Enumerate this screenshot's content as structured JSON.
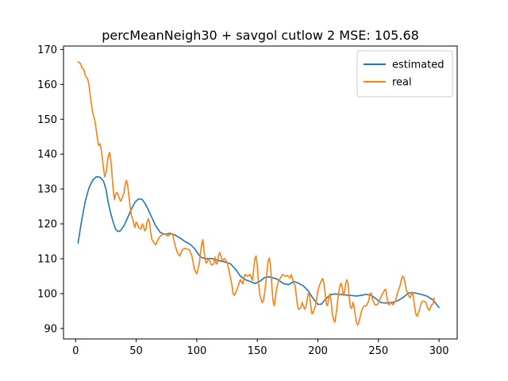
{
  "chart_data": {
    "type": "line",
    "title": "percMeanNeigh30 + savgol cutlow 2 MSE: 105.68",
    "xlabel": "",
    "ylabel": "",
    "xlim": [
      -10,
      315
    ],
    "ylim": [
      87,
      171
    ],
    "xticks": [
      0,
      50,
      100,
      150,
      200,
      250,
      300
    ],
    "yticks": [
      90,
      100,
      110,
      120,
      130,
      140,
      150,
      160,
      170
    ],
    "grid": false,
    "legend_position": "top-right",
    "series": [
      {
        "name": "estimated",
        "color": "#1f77b4",
        "points": [
          [
            2,
            114.5
          ],
          [
            5,
            121
          ],
          [
            8,
            126.5
          ],
          [
            11,
            130.3
          ],
          [
            14,
            132.5
          ],
          [
            17,
            133.5
          ],
          [
            20,
            133.4
          ],
          [
            23,
            132.3
          ],
          [
            25,
            130
          ],
          [
            27,
            126
          ],
          [
            29,
            123
          ],
          [
            31,
            120.5
          ],
          [
            33,
            118.5
          ],
          [
            35,
            117.8
          ],
          [
            37,
            118
          ],
          [
            40,
            119.5
          ],
          [
            43,
            121.8
          ],
          [
            46,
            124.2
          ],
          [
            49,
            126.2
          ],
          [
            52,
            127.2
          ],
          [
            55,
            127
          ],
          [
            58,
            125.5
          ],
          [
            62,
            122.5
          ],
          [
            66,
            119.5
          ],
          [
            70,
            117.5
          ],
          [
            74,
            117
          ],
          [
            78,
            117.3
          ],
          [
            82,
            116.8
          ],
          [
            86,
            116
          ],
          [
            90,
            115
          ],
          [
            94,
            114.3
          ],
          [
            98,
            113
          ],
          [
            100,
            112
          ],
          [
            103,
            110.5
          ],
          [
            107,
            110
          ],
          [
            112,
            110.1
          ],
          [
            118,
            109.5
          ],
          [
            124,
            109
          ],
          [
            128,
            108.5
          ],
          [
            132,
            107
          ],
          [
            136,
            105
          ],
          [
            140,
            104
          ],
          [
            144,
            103.5
          ],
          [
            148,
            102.9
          ],
          [
            152,
            103.5
          ],
          [
            156,
            104.6
          ],
          [
            160,
            104.8
          ],
          [
            166,
            104.2
          ],
          [
            172,
            102.8
          ],
          [
            176,
            102.6
          ],
          [
            180,
            103.5
          ],
          [
            184,
            103
          ],
          [
            188,
            102.2
          ],
          [
            192,
            100.8
          ],
          [
            196,
            98.6
          ],
          [
            200,
            96.9
          ],
          [
            203,
            97
          ],
          [
            206,
            98.3
          ],
          [
            210,
            99.6
          ],
          [
            214,
            99.9
          ],
          [
            220,
            99.7
          ],
          [
            226,
            99.5
          ],
          [
            232,
            99.3
          ],
          [
            236,
            99.5
          ],
          [
            240,
            99.8
          ],
          [
            244,
            99.5
          ],
          [
            248,
            98.5
          ],
          [
            252,
            97.4
          ],
          [
            256,
            97.3
          ],
          [
            262,
            97.5
          ],
          [
            266,
            98
          ],
          [
            270,
            98.8
          ],
          [
            275,
            100.2
          ],
          [
            280,
            100.2
          ],
          [
            285,
            99.8
          ],
          [
            290,
            99.3
          ],
          [
            295,
            98.2
          ],
          [
            300,
            96
          ]
        ]
      },
      {
        "name": "real",
        "color": "#ff7f0e",
        "points": [
          [
            2,
            166.5
          ],
          [
            4,
            166
          ],
          [
            5,
            165
          ],
          [
            7,
            164
          ],
          [
            8,
            162.5
          ],
          [
            10,
            161.5
          ],
          [
            11,
            160
          ],
          [
            12,
            157
          ],
          [
            14,
            152
          ],
          [
            16,
            149.5
          ],
          [
            17,
            147
          ],
          [
            18,
            144.5
          ],
          [
            19,
            142.5
          ],
          [
            20,
            143
          ],
          [
            21,
            141.5
          ],
          [
            22,
            139
          ],
          [
            23,
            136
          ],
          [
            24,
            133.5
          ],
          [
            25,
            134.5
          ],
          [
            26,
            137
          ],
          [
            27,
            139.5
          ],
          [
            28,
            140.5
          ],
          [
            29,
            138.5
          ],
          [
            30,
            134.5
          ],
          [
            31,
            130
          ],
          [
            32,
            127
          ],
          [
            33,
            128.5
          ],
          [
            34,
            129
          ],
          [
            35,
            128.5
          ],
          [
            36,
            127.5
          ],
          [
            37,
            126.5
          ],
          [
            38,
            127
          ],
          [
            39,
            128
          ],
          [
            40,
            129
          ],
          [
            41,
            131.5
          ],
          [
            42,
            132.5
          ],
          [
            43,
            131
          ],
          [
            44,
            128
          ],
          [
            45,
            125
          ],
          [
            46,
            122.5
          ],
          [
            47,
            121.5
          ],
          [
            48,
            120
          ],
          [
            49,
            119
          ],
          [
            50,
            120.5
          ],
          [
            51,
            120
          ],
          [
            52,
            119
          ],
          [
            54,
            118.5
          ],
          [
            55,
            120
          ],
          [
            56,
            119.5
          ],
          [
            57,
            118
          ],
          [
            58,
            118.5
          ],
          [
            59,
            120.5
          ],
          [
            60,
            121.5
          ],
          [
            61,
            120.5
          ],
          [
            62,
            117.5
          ],
          [
            63,
            115.5
          ],
          [
            64,
            115
          ],
          [
            65,
            114.5
          ],
          [
            66,
            114
          ],
          [
            68,
            115.5
          ],
          [
            70,
            116.5
          ],
          [
            72,
            117
          ],
          [
            74,
            117
          ],
          [
            76,
            116.5
          ],
          [
            78,
            117
          ],
          [
            80,
            117.2
          ],
          [
            82,
            114
          ],
          [
            84,
            111.8
          ],
          [
            86,
            110.8
          ],
          [
            88,
            112.5
          ],
          [
            90,
            113
          ],
          [
            92,
            112.8
          ],
          [
            94,
            112.5
          ],
          [
            96,
            110.8
          ],
          [
            98,
            107
          ],
          [
            100,
            105.7
          ],
          [
            102,
            108.5
          ],
          [
            103,
            111.5
          ],
          [
            104,
            114
          ],
          [
            105,
            115.5
          ],
          [
            106,
            112.5
          ],
          [
            107,
            109.5
          ],
          [
            108,
            108.7
          ],
          [
            109,
            109.5
          ],
          [
            110,
            110
          ],
          [
            112,
            108.2
          ],
          [
            114,
            108.5
          ],
          [
            115,
            110.5
          ],
          [
            116,
            108.5
          ],
          [
            117,
            108.7
          ],
          [
            118,
            111
          ],
          [
            119,
            111.8
          ],
          [
            121,
            109.5
          ],
          [
            123,
            110
          ],
          [
            125,
            109
          ],
          [
            127,
            106
          ],
          [
            129,
            102.5
          ],
          [
            130,
            100
          ],
          [
            131,
            99.5
          ],
          [
            133,
            101
          ],
          [
            135,
            103
          ],
          [
            136,
            104
          ],
          [
            138,
            102.8
          ],
          [
            139,
            104.5
          ],
          [
            140,
            105.5
          ],
          [
            142,
            105
          ],
          [
            144,
            105.5
          ],
          [
            146,
            103.8
          ],
          [
            147,
            107
          ],
          [
            148,
            110
          ],
          [
            149,
            110.8
          ],
          [
            150,
            108
          ],
          [
            151,
            103
          ],
          [
            152,
            99.8
          ],
          [
            153,
            98.5
          ],
          [
            154,
            97.4
          ],
          [
            155,
            98
          ],
          [
            156,
            100
          ],
          [
            157,
            103
          ],
          [
            158,
            106.5
          ],
          [
            159,
            109.5
          ],
          [
            160,
            110.2
          ],
          [
            161,
            107.5
          ],
          [
            162,
            102
          ],
          [
            163,
            97.8
          ],
          [
            164,
            96.5
          ],
          [
            165,
            99
          ],
          [
            166,
            101.5
          ],
          [
            167,
            103
          ],
          [
            169,
            104.5
          ],
          [
            171,
            105.5
          ],
          [
            173,
            105
          ],
          [
            175,
            105.2
          ],
          [
            177,
            104.5
          ],
          [
            178,
            105.5
          ],
          [
            180,
            103
          ],
          [
            181,
            102.5
          ],
          [
            182,
            100
          ],
          [
            183,
            97
          ],
          [
            184,
            95.5
          ],
          [
            186,
            96
          ],
          [
            187,
            97.5
          ],
          [
            189,
            95.5
          ],
          [
            190,
            96
          ],
          [
            191,
            98
          ],
          [
            192,
            100
          ],
          [
            193,
            99.5
          ],
          [
            194,
            97
          ],
          [
            195,
            94.2
          ],
          [
            196,
            94.5
          ],
          [
            197,
            95.5
          ],
          [
            198,
            96.5
          ],
          [
            199,
            98.5
          ],
          [
            200,
            101
          ],
          [
            202,
            103
          ],
          [
            203,
            103.8
          ],
          [
            204,
            104.3
          ],
          [
            205,
            103
          ],
          [
            206,
            100
          ],
          [
            207,
            97
          ],
          [
            208,
            96.5
          ],
          [
            209,
            99
          ],
          [
            210,
            100
          ],
          [
            211,
            97.5
          ],
          [
            212,
            94
          ],
          [
            213,
            92.5
          ],
          [
            214,
            91.8
          ],
          [
            215,
            94
          ],
          [
            216,
            97
          ],
          [
            217,
            100
          ],
          [
            218,
            102
          ],
          [
            219,
            103
          ],
          [
            220,
            102
          ],
          [
            221,
            99.5
          ],
          [
            222,
            100.5
          ],
          [
            223,
            103
          ],
          [
            224,
            104
          ],
          [
            225,
            102.5
          ],
          [
            226,
            98.5
          ],
          [
            227,
            96
          ],
          [
            228,
            95.8
          ],
          [
            229,
            97.5
          ],
          [
            230,
            96
          ],
          [
            231,
            93.5
          ],
          [
            232,
            91.5
          ],
          [
            233,
            91
          ],
          [
            234,
            92
          ],
          [
            235,
            93.5
          ],
          [
            236,
            95
          ],
          [
            238,
            96.5
          ],
          [
            240,
            96.5
          ],
          [
            242,
            98
          ],
          [
            243,
            100
          ],
          [
            244,
            100.2
          ],
          [
            245,
            98.5
          ],
          [
            247,
            96.8
          ],
          [
            249,
            96.8
          ],
          [
            251,
            98.2
          ],
          [
            253,
            99.8
          ],
          [
            255,
            101
          ],
          [
            256,
            101.2
          ],
          [
            257,
            99
          ],
          [
            258,
            97
          ],
          [
            259,
            96.8
          ],
          [
            260,
            97.5
          ],
          [
            262,
            96.8
          ],
          [
            264,
            97.8
          ],
          [
            266,
            100.5
          ],
          [
            268,
            102.5
          ],
          [
            269,
            104.2
          ],
          [
            270,
            105
          ],
          [
            271,
            104.5
          ],
          [
            272,
            103
          ],
          [
            273,
            101.2
          ],
          [
            274,
            100
          ],
          [
            276,
            98.8
          ],
          [
            278,
            100.5
          ],
          [
            279,
            98.5
          ],
          [
            280,
            96
          ],
          [
            281,
            94
          ],
          [
            282,
            93.5
          ],
          [
            283,
            94.5
          ],
          [
            284,
            95.5
          ],
          [
            285,
            97
          ],
          [
            286,
            97.8
          ],
          [
            288,
            97.8
          ],
          [
            289,
            97.5
          ],
          [
            290,
            96.5
          ],
          [
            291,
            95.5
          ],
          [
            292,
            95.2
          ],
          [
            293,
            96
          ],
          [
            294,
            96.8
          ],
          [
            295,
            97
          ],
          [
            296,
            98.8
          ]
        ]
      }
    ]
  }
}
